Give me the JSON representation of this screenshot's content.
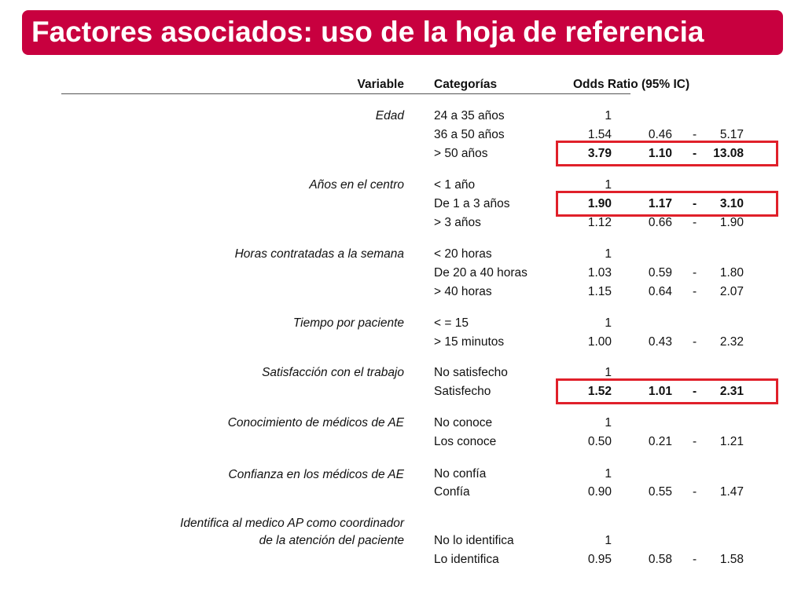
{
  "title": "Factores asociados: uso de la hoja de referencia",
  "headers": {
    "variable": "Variable",
    "categorias": "Categorías",
    "odds_ratio": "Odds Ratio (95% IC)"
  },
  "colors": {
    "title_bg": "#c8003f",
    "highlight": "#e0202a"
  },
  "groups": [
    {
      "variable": "Edad",
      "rows": [
        {
          "categoria": "24 a 35 años",
          "or": "1",
          "lo": "",
          "dash": "",
          "hi": ""
        },
        {
          "categoria": "36 a 50 años",
          "or": "1.54",
          "lo": "0.46",
          "dash": "-",
          "hi": "5.17"
        },
        {
          "categoria": "> 50 años",
          "or": "3.79",
          "lo": "1.10",
          "dash": "-",
          "hi": "13.08",
          "highlight": true
        }
      ]
    },
    {
      "variable": "Años en el centro",
      "rows": [
        {
          "categoria": "< 1 año",
          "or": "1",
          "lo": "",
          "dash": "",
          "hi": ""
        },
        {
          "categoria": "De 1 a 3 años",
          "or": "1.90",
          "lo": "1.17",
          "dash": "-",
          "hi": "3.10",
          "highlight": true
        },
        {
          "categoria": "> 3 años",
          "or": "1.12",
          "lo": "0.66",
          "dash": "-",
          "hi": "1.90"
        }
      ]
    },
    {
      "variable": "Horas contratadas a la semana",
      "rows": [
        {
          "categoria": "< 20 horas",
          "or": "1",
          "lo": "",
          "dash": "",
          "hi": ""
        },
        {
          "categoria": "De 20 a 40 horas",
          "or": "1.03",
          "lo": "0.59",
          "dash": "-",
          "hi": "1.80"
        },
        {
          "categoria": "> 40 horas",
          "or": "1.15",
          "lo": "0.64",
          "dash": "-",
          "hi": "2.07"
        }
      ]
    },
    {
      "variable": "Tiempo por paciente",
      "rows": [
        {
          "categoria": "< = 15",
          "or": "1",
          "lo": "",
          "dash": "",
          "hi": ""
        },
        {
          "categoria": "> 15 minutos",
          "or": "1.00",
          "lo": "0.43",
          "dash": "-",
          "hi": "2.32"
        }
      ]
    },
    {
      "variable": "Satisfacción con el trabajo",
      "rows": [
        {
          "categoria": "No satisfecho",
          "or": "1",
          "lo": "",
          "dash": "",
          "hi": ""
        },
        {
          "categoria": "Satisfecho",
          "or": "1.52",
          "lo": "1.01",
          "dash": "-",
          "hi": "2.31",
          "highlight": true
        }
      ]
    },
    {
      "variable": "Conocimiento de médicos de AE",
      "rows": [
        {
          "categoria": "No conoce",
          "or": "1",
          "lo": "",
          "dash": "",
          "hi": ""
        },
        {
          "categoria": "Los conoce",
          "or": "0.50",
          "lo": "0.21",
          "dash": "-",
          "hi": "1.21"
        }
      ]
    },
    {
      "variable": "Confianza en los médicos de AE",
      "rows": [
        {
          "categoria": "No confía",
          "or": "1",
          "lo": "",
          "dash": "",
          "hi": ""
        },
        {
          "categoria": "Confía",
          "or": "0.90",
          "lo": "0.55",
          "dash": "-",
          "hi": "1.47"
        }
      ]
    },
    {
      "variable": "Identifica al medico AP como coordinador",
      "variable_line2": "de la atención del paciente",
      "rows": [
        {
          "categoria": "No lo identifica",
          "or": "1",
          "lo": "",
          "dash": "",
          "hi": ""
        },
        {
          "categoria": "Lo identifica",
          "or": "0.95",
          "lo": "0.58",
          "dash": "-",
          "hi": "1.58"
        }
      ]
    }
  ]
}
